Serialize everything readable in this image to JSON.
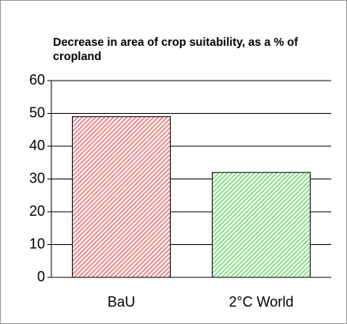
{
  "chart_data": {
    "type": "bar",
    "title": "Decrease in area of crop suitability, as a % of cropland",
    "categories": [
      "BaU",
      "2°C World"
    ],
    "values": [
      49,
      32
    ],
    "colors": [
      "#f08a8a",
      "#8ae08a"
    ],
    "ylim": [
      0,
      60
    ],
    "yticks": [
      0,
      10,
      20,
      30,
      40,
      50,
      60
    ],
    "grid": true
  }
}
